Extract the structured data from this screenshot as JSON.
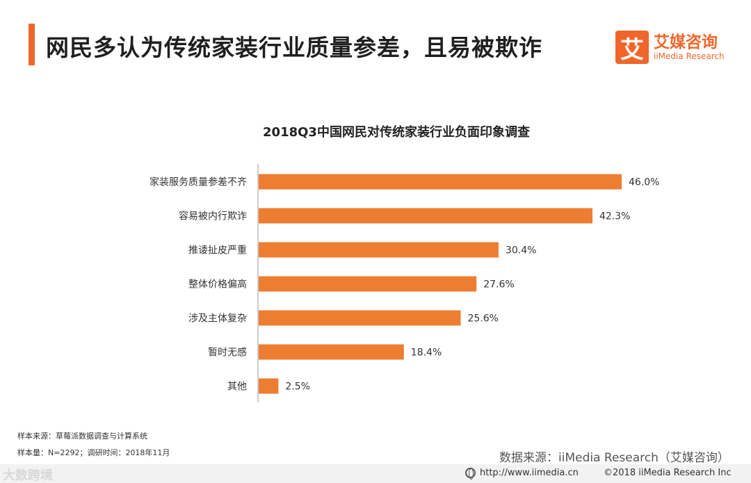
{
  "header": {
    "title": "网民多认为传统家装行业质量参差，且易被欺诈",
    "accent_color": "#f0662a"
  },
  "logo": {
    "mark": "艾",
    "name_cn": "艾媒咨询",
    "name_en": "iiMedia Research"
  },
  "chart_data": {
    "type": "bar",
    "orientation": "horizontal",
    "title": "2018Q3中国网民对传统家装行业负面印象调查",
    "categories": [
      "家装服务质量参差不齐",
      "容易被内行欺诈",
      "推诿扯皮严重",
      "整体价格偏高",
      "涉及主体复杂",
      "暂时无感",
      "其他"
    ],
    "values": [
      46.0,
      42.3,
      30.4,
      27.6,
      25.6,
      18.4,
      2.5
    ],
    "value_labels": [
      "46.0%",
      "42.3%",
      "30.4%",
      "27.6%",
      "25.6%",
      "18.4%",
      "2.5%"
    ],
    "xlim": [
      0,
      50
    ],
    "bar_color": "#ed7d31",
    "grid": false,
    "legend": "none"
  },
  "footer": {
    "sample_source": "样本来源：草莓派数据调查与计算系统",
    "sample_info": "样本量：N=2292；调研时间：2018年11月",
    "data_source": "数据来源：iiMedia Research（艾媒咨询）",
    "watermark": "大数跨境",
    "url": "http://www.iimedia.cn",
    "copyright": "©2018  iiMedia Research  Inc"
  }
}
